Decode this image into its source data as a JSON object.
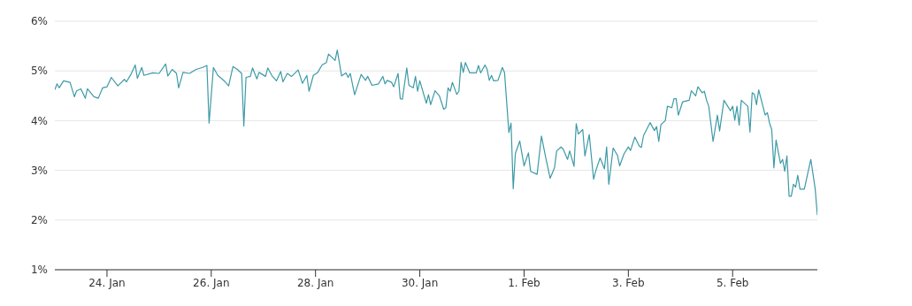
{
  "chart_data": {
    "type": "line",
    "color": "#3d9aa6",
    "grid": "y",
    "marker": "none",
    "xlim": [
      "--01-23T00:00",
      "--02-06T15:00"
    ],
    "ylim": [
      1,
      6
    ],
    "xticks": [
      {
        "value": "--01-24",
        "label": "24. Jan"
      },
      {
        "value": "--01-26",
        "label": "26. Jan"
      },
      {
        "value": "--01-28",
        "label": "28. Jan"
      },
      {
        "value": "--01-30",
        "label": "30. Jan"
      },
      {
        "value": "--02-01",
        "label": "1. Feb"
      },
      {
        "value": "--02-03",
        "label": "3. Feb"
      },
      {
        "value": "--02-05",
        "label": "5. Feb"
      }
    ],
    "yticks": [
      {
        "value": 1,
        "label": "1%"
      },
      {
        "value": 2,
        "label": "2%"
      },
      {
        "value": 3,
        "label": "3%"
      },
      {
        "value": 4,
        "label": "4%"
      },
      {
        "value": 5,
        "label": "5%"
      },
      {
        "value": 6,
        "label": "6%"
      }
    ],
    "x": [
      "--01-23T00:00",
      "--01-23T01:00",
      "--01-23T02:00",
      "--01-23T04:00",
      "--01-23T07:00",
      "--01-23T09:00",
      "--01-23T10:00",
      "--01-23T12:00",
      "--01-23T14:00",
      "--01-23T15:00",
      "--01-23T18:00",
      "--01-23T20:00",
      "--01-23T22:00",
      "--01-24T00:00",
      "--01-24T02:00",
      "--01-24T05:00",
      "--01-24T08:00",
      "--01-24T09:00",
      "--01-24T11:00",
      "--01-24T13:00",
      "--01-24T14:00",
      "--01-24T16:00",
      "--01-24T17:00",
      "--01-24T21:00",
      "--01-25T00:00",
      "--01-25T03:00",
      "--01-25T04:00",
      "--01-25T06:00",
      "--01-25T08:00",
      "--01-25T09:00",
      "--01-25T11:00",
      "--01-25T14:00",
      "--01-25T17:00",
      "--01-25T20:00",
      "--01-25T22:00",
      "--01-25T23:00",
      "--01-26T01:00",
      "--01-26T03:00",
      "--01-26T06:00",
      "--01-26T08:00",
      "--01-26T10:00",
      "--01-26T12:00",
      "--01-26T14:00",
      "--01-26T15:00",
      "--01-26T16:00",
      "--01-26T18:00",
      "--01-26T19:00",
      "--01-26T21:00",
      "--01-26T22:00",
      "--01-27T01:00",
      "--01-27T02:00",
      "--01-27T04:00",
      "--01-27T06:00",
      "--01-27T08:00",
      "--01-27T09:00",
      "--01-27T11:00",
      "--01-27T13:00",
      "--01-27T16:00",
      "--01-27T18:00",
      "--01-27T20:00",
      "--01-27T21:00",
      "--01-27T23:00",
      "--01-28T01:00",
      "--01-28T03:00",
      "--01-28T05:00",
      "--01-28T06:00",
      "--01-28T09:00",
      "--01-28T10:00",
      "--01-28T12:00",
      "--01-28T14:00",
      "--01-28T15:00",
      "--01-28T16:00",
      "--01-28T18:00",
      "--01-28T21:00",
      "--01-28T23:00",
      "--01-29T00:00",
      "--01-29T02:00",
      "--01-29T05:00",
      "--01-29T07:00",
      "--01-29T08:00",
      "--01-29T09:00",
      "--01-29T11:00",
      "--01-29T12:00",
      "--01-29T14:00",
      "--01-29T15:00",
      "--01-29T16:00",
      "--01-29T18:00",
      "--01-29T19:00",
      "--01-29T21:00",
      "--01-29T22:00",
      "--01-29T23:00",
      "--01-30T00:00",
      "--01-30T03:00",
      "--01-30T04:00",
      "--01-30T05:00",
      "--01-30T07:00",
      "--01-30T09:00",
      "--01-30T11:00",
      "--01-30T12:00",
      "--01-30T13:00",
      "--01-30T14:00",
      "--01-30T15:00",
      "--01-30T17:00",
      "--01-30T18:00",
      "--01-30T19:00",
      "--01-30T20:00",
      "--01-30T21:00",
      "--01-30T23:00",
      "--01-31T02:00",
      "--01-31T03:00",
      "--01-31T04:00",
      "--01-31T06:00",
      "--01-31T07:00",
      "--01-31T08:00",
      "--01-31T09:00",
      "--01-31T10:00",
      "--01-31T12:00",
      "--01-31T14:00",
      "--01-31T15:00",
      "--01-31T17:00",
      "--01-31T18:00",
      "--01-31T19:00",
      "--01-31T20:00",
      "--01-31T22:00",
      "--02-01T00:00",
      "--02-01T02:00",
      "--02-01T03:00",
      "--02-01T06:00",
      "--02-01T08:00",
      "--02-01T10:00",
      "--02-01T12:00",
      "--02-01T14:00",
      "--02-01T15:00",
      "--02-01T17:00",
      "--02-01T18:00",
      "--02-01T20:00",
      "--02-01T21:00",
      "--02-01T23:00",
      "--02-02T00:00",
      "--02-02T01:00",
      "--02-02T03:00",
      "--02-02T04:00",
      "--02-02T06:00",
      "--02-02T08:00",
      "--02-02T09:00",
      "--02-02T11:00",
      "--02-02T13:00",
      "--02-02T14:00",
      "--02-02T15:00",
      "--02-02T17:00",
      "--02-02T19:00",
      "--02-02T20:00",
      "--02-02T22:00",
      "--02-03T00:00",
      "--02-03T01:00",
      "--02-03T03:00",
      "--02-03T05:00",
      "--02-03T06:00",
      "--02-03T07:00",
      "--02-03T10:00",
      "--02-03T12:00",
      "--02-03T13:00",
      "--02-03T14:00",
      "--02-03T15:00",
      "--02-03T17:00",
      "--02-03T18:00",
      "--02-03T20:00",
      "--02-03T21:00",
      "--02-03T22:00",
      "--02-03T23:00",
      "--02-04T01:00",
      "--02-04T04:00",
      "--02-04T05:00",
      "--02-04T07:00",
      "--02-04T08:00",
      "--02-04T10:00",
      "--02-04T11:00",
      "--02-04T12:00",
      "--02-04T13:00",
      "--02-04T15:00",
      "--02-04T17:00",
      "--02-04T18:00",
      "--02-04T20:00",
      "--02-04T23:00",
      "--02-05T00:00",
      "--02-05T01:00",
      "--02-05T02:00",
      "--02-05T03:00",
      "--02-05T04:00",
      "--02-05T07:00",
      "--02-05T08:00",
      "--02-05T09:00",
      "--02-05T10:00",
      "--02-05T11:00",
      "--02-05T12:00",
      "--02-05T15:00",
      "--02-05T16:00",
      "--02-05T17:00",
      "--02-05T18:00",
      "--02-05T19:00",
      "--02-05T20:00",
      "--02-05T22:00",
      "--02-05T23:00",
      "--02-06T00:00",
      "--02-06T01:00",
      "--02-06T02:00",
      "--02-06T03:00",
      "--02-06T04:00",
      "--02-06T05:00",
      "--02-06T06:00",
      "--02-06T07:00",
      "--02-06T09:00",
      "--02-06T12:00",
      "--02-06T14:00",
      "--02-06T15:00"
    ],
    "values": [
      4.62,
      4.74,
      4.66,
      4.8,
      4.77,
      4.48,
      4.6,
      4.64,
      4.45,
      4.64,
      4.48,
      4.45,
      4.66,
      4.68,
      4.87,
      4.7,
      4.83,
      4.78,
      4.93,
      5.12,
      4.85,
      5.07,
      4.91,
      4.96,
      4.95,
      5.14,
      4.9,
      5.03,
      4.95,
      4.66,
      4.97,
      4.95,
      5.03,
      5.07,
      5.11,
      3.95,
      5.07,
      4.91,
      4.8,
      4.7,
      5.09,
      5.03,
      4.95,
      3.89,
      4.87,
      4.89,
      5.06,
      4.84,
      4.97,
      4.89,
      5.06,
      4.9,
      4.8,
      4.99,
      4.78,
      4.95,
      4.89,
      5.02,
      4.75,
      4.91,
      4.59,
      4.91,
      4.97,
      5.12,
      5.17,
      5.34,
      5.21,
      5.42,
      4.9,
      4.96,
      4.87,
      4.95,
      4.52,
      4.93,
      4.81,
      4.89,
      4.71,
      4.74,
      4.89,
      4.74,
      4.81,
      4.77,
      4.68,
      4.95,
      4.44,
      4.43,
      5.06,
      4.71,
      4.66,
      4.89,
      4.59,
      4.8,
      4.35,
      4.52,
      4.32,
      4.6,
      4.5,
      4.23,
      4.26,
      4.66,
      4.59,
      4.77,
      4.53,
      4.59,
      5.17,
      4.97,
      5.17,
      4.96,
      4.96,
      5.11,
      4.96,
      5.12,
      5.03,
      4.81,
      4.91,
      4.8,
      4.81,
      5.07,
      4.97,
      3.76,
      3.95,
      2.63,
      3.34,
      3.59,
      3.09,
      3.35,
      2.98,
      2.92,
      3.69,
      3.25,
      2.84,
      3.05,
      3.39,
      3.47,
      3.43,
      3.22,
      3.39,
      3.08,
      3.94,
      3.73,
      3.82,
      3.29,
      3.72,
      2.82,
      2.99,
      3.25,
      3.03,
      3.47,
      2.72,
      3.45,
      3.3,
      3.09,
      3.33,
      3.47,
      3.4,
      3.67,
      3.49,
      3.46,
      3.7,
      3.96,
      3.8,
      3.88,
      3.58,
      3.92,
      4.0,
      4.29,
      4.26,
      4.44,
      4.44,
      4.11,
      4.38,
      4.41,
      4.6,
      4.5,
      4.68,
      4.56,
      4.59,
      4.41,
      4.29,
      3.58,
      4.11,
      3.79,
      4.41,
      4.2,
      4.29,
      4.01,
      4.29,
      3.91,
      4.41,
      4.29,
      3.77,
      4.56,
      4.53,
      4.32,
      4.62,
      4.11,
      4.16,
      3.95,
      3.82,
      3.05,
      3.61,
      3.14,
      3.22,
      2.98,
      3.29,
      2.48,
      2.48,
      2.72,
      2.66,
      2.9,
      2.62,
      2.62,
      3.22,
      2.63,
      2.1
    ]
  }
}
